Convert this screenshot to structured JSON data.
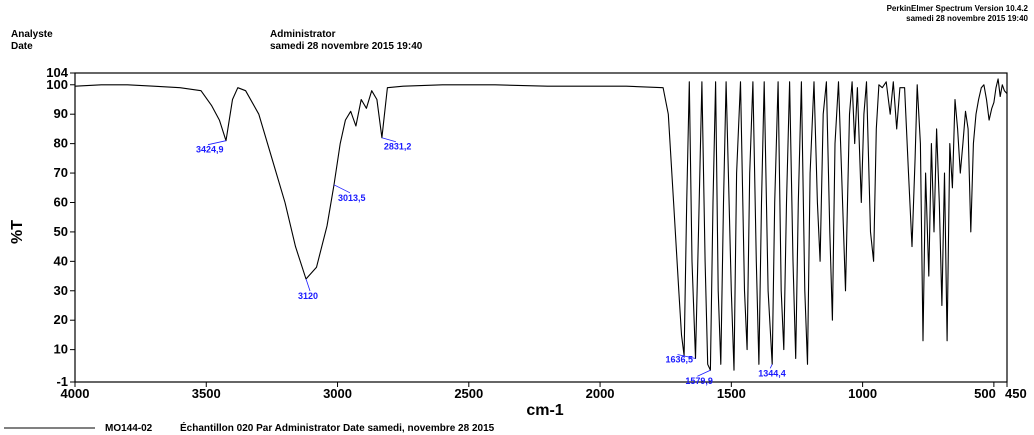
{
  "header": {
    "analyst_label": "Analyste",
    "date_label": "Date",
    "analyst_value": "Administrator",
    "date_value": "samedi 28 novembre 2015 19:40",
    "software": "PerkinElmer Spectrum Version 10.4.2",
    "software_date": "samedi 28 novembre 2015 19:40"
  },
  "legend": {
    "sample_id": "MO144-02",
    "description": "Échantillon 020 Par Administrator Date samedi, novembre 28 2015"
  },
  "chart_data": {
    "type": "line",
    "xlabel": "cm-1",
    "ylabel": "%T",
    "xlim": [
      4000,
      450
    ],
    "ylim": [
      -1,
      104
    ],
    "x_ticks": [
      4000,
      3500,
      3000,
      2500,
      2000,
      1500,
      1000,
      500,
      450
    ],
    "x_tick_labels": [
      "4000",
      "3500",
      "3000",
      "2500",
      "2000",
      "1500",
      "1000",
      "500",
      "450"
    ],
    "y_ticks": [
      -1,
      10,
      20,
      30,
      40,
      50,
      60,
      70,
      80,
      90,
      100,
      104
    ],
    "y_tick_labels": [
      "-1",
      "10",
      "20",
      "30",
      "40",
      "50",
      "60",
      "70",
      "80",
      "90",
      "100",
      "104"
    ],
    "series": [
      {
        "name": "MO144-02",
        "color": "#000000",
        "points": [
          [
            4000,
            99.5
          ],
          [
            3900,
            100.0
          ],
          [
            3800,
            100.0
          ],
          [
            3700,
            99.5
          ],
          [
            3600,
            99.0
          ],
          [
            3520,
            98.0
          ],
          [
            3480,
            93.0
          ],
          [
            3450,
            88.0
          ],
          [
            3424.9,
            81.0
          ],
          [
            3400,
            95.0
          ],
          [
            3380,
            99.0
          ],
          [
            3350,
            98.0
          ],
          [
            3300,
            90.0
          ],
          [
            3250,
            75.0
          ],
          [
            3200,
            60.0
          ],
          [
            3160,
            45.0
          ],
          [
            3120,
            34.0
          ],
          [
            3080,
            38.0
          ],
          [
            3040,
            52.0
          ],
          [
            3013.5,
            66.0
          ],
          [
            2990,
            80.0
          ],
          [
            2970,
            88.0
          ],
          [
            2950,
            91.0
          ],
          [
            2930,
            86.0
          ],
          [
            2910,
            95.0
          ],
          [
            2890,
            92.0
          ],
          [
            2870,
            98.0
          ],
          [
            2850,
            95.0
          ],
          [
            2831.2,
            82.0
          ],
          [
            2810,
            99.0
          ],
          [
            2750,
            99.5
          ],
          [
            2600,
            100.0
          ],
          [
            2400,
            100.0
          ],
          [
            2200,
            99.5
          ],
          [
            2000,
            99.5
          ],
          [
            1900,
            99.5
          ],
          [
            1760,
            99.0
          ],
          [
            1740,
            90.0
          ],
          [
            1720,
            60.0
          ],
          [
            1700,
            30.0
          ],
          [
            1690,
            15.0
          ],
          [
            1680,
            8.0
          ],
          [
            1670,
            60.0
          ],
          [
            1660,
            101.0
          ],
          [
            1650,
            40.0
          ],
          [
            1636.5,
            7.0
          ],
          [
            1625,
            50.0
          ],
          [
            1612,
            101.0
          ],
          [
            1600,
            40.0
          ],
          [
            1590,
            5.0
          ],
          [
            1579.9,
            3.0
          ],
          [
            1570,
            60.0
          ],
          [
            1560,
            101.0
          ],
          [
            1550,
            30.0
          ],
          [
            1540,
            5.0
          ],
          [
            1530,
            60.0
          ],
          [
            1520,
            101.0
          ],
          [
            1500,
            30.0
          ],
          [
            1490,
            3.0
          ],
          [
            1480,
            70.0
          ],
          [
            1465,
            101.0
          ],
          [
            1450,
            30.0
          ],
          [
            1440,
            10.0
          ],
          [
            1430,
            70.0
          ],
          [
            1418,
            101.0
          ],
          [
            1405,
            40.0
          ],
          [
            1395,
            5.0
          ],
          [
            1385,
            60.0
          ],
          [
            1375,
            101.0
          ],
          [
            1360,
            30.0
          ],
          [
            1344.4,
            5.0
          ],
          [
            1335,
            60.0
          ],
          [
            1322,
            101.0
          ],
          [
            1310,
            30.0
          ],
          [
            1300,
            10.0
          ],
          [
            1290,
            60.0
          ],
          [
            1278,
            101.0
          ],
          [
            1265,
            40.0
          ],
          [
            1255,
            7.0
          ],
          [
            1245,
            60.0
          ],
          [
            1233,
            101.0
          ],
          [
            1220,
            30.0
          ],
          [
            1210,
            5.0
          ],
          [
            1200,
            70.0
          ],
          [
            1185,
            101.0
          ],
          [
            1172,
            60.0
          ],
          [
            1162,
            40.0
          ],
          [
            1150,
            90.0
          ],
          [
            1138,
            101.0
          ],
          [
            1125,
            50.0
          ],
          [
            1115,
            20.0
          ],
          [
            1105,
            80.0
          ],
          [
            1092,
            101.0
          ],
          [
            1080,
            70.0
          ],
          [
            1065,
            30.0
          ],
          [
            1050,
            90.0
          ],
          [
            1040,
            101.0
          ],
          [
            1030,
            80.0
          ],
          [
            1020,
            99.0
          ],
          [
            1005,
            60.0
          ],
          [
            995,
            90.0
          ],
          [
            985,
            101.0
          ],
          [
            970,
            50.0
          ],
          [
            958,
            40.0
          ],
          [
            948,
            85.0
          ],
          [
            938,
            100.0
          ],
          [
            925,
            99.0
          ],
          [
            910,
            101.0
          ],
          [
            895,
            90.0
          ],
          [
            883,
            101.0
          ],
          [
            870,
            85.0
          ],
          [
            858,
            99.0
          ],
          [
            840,
            99.0
          ],
          [
            825,
            70.0
          ],
          [
            812,
            45.0
          ],
          [
            800,
            75.0
          ],
          [
            792,
            100.0
          ],
          [
            780,
            80.0
          ],
          [
            770,
            13.0
          ],
          [
            760,
            70.0
          ],
          [
            748,
            35.0
          ],
          [
            738,
            80.0
          ],
          [
            728,
            50.0
          ],
          [
            718,
            85.0
          ],
          [
            708,
            60.0
          ],
          [
            698,
            25.0
          ],
          [
            688,
            70.0
          ],
          [
            678,
            13.0
          ],
          [
            668,
            80.0
          ],
          [
            658,
            65.0
          ],
          [
            648,
            95.0
          ],
          [
            638,
            85.0
          ],
          [
            628,
            70.0
          ],
          [
            618,
            80.0
          ],
          [
            608,
            91.0
          ],
          [
            598,
            85.0
          ],
          [
            588,
            50.0
          ],
          [
            578,
            80.0
          ],
          [
            568,
            90.0
          ],
          [
            558,
            95.0
          ],
          [
            548,
            99.0
          ],
          [
            538,
            100.0
          ],
          [
            528,
            95.0
          ],
          [
            518,
            88.0
          ],
          [
            508,
            92.0
          ],
          [
            500,
            94.0
          ],
          [
            492,
            99.0
          ],
          [
            484,
            102.0
          ],
          [
            476,
            96.0
          ],
          [
            468,
            100.0
          ],
          [
            460,
            98.0
          ],
          [
            450,
            97.0
          ]
        ]
      }
    ],
    "annotations": [
      {
        "label": "3424,9",
        "x": 3424.9,
        "y": 81.0
      },
      {
        "label": "3120",
        "x": 3120,
        "y": 34.0
      },
      {
        "label": "3013,5",
        "x": 3013.5,
        "y": 66.0
      },
      {
        "label": "2831,2",
        "x": 2831.2,
        "y": 82.0
      },
      {
        "label": "1636,5",
        "x": 1636.5,
        "y": 7.0
      },
      {
        "label": "1579,9",
        "x": 1579.9,
        "y": 3.0
      },
      {
        "label": "1344,4",
        "x": 1344.4,
        "y": 5.0
      }
    ],
    "grid": false,
    "annotation_color": "#1a1aff"
  }
}
